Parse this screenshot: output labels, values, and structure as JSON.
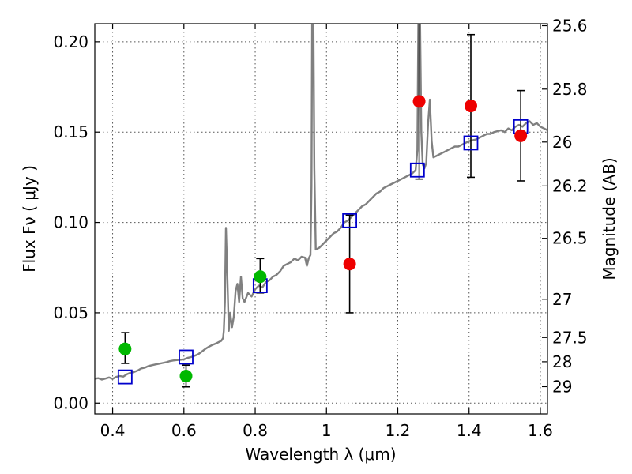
{
  "chart_data": {
    "type": "scatter",
    "xlabel": "Wavelength  λ (μm)",
    "ylabel": "Flux  Fν  ( μJy )",
    "y2label": "Magnitude (AB)",
    "xlim": [
      0.35,
      1.62
    ],
    "ylim": [
      -0.006,
      0.21
    ],
    "grid": true,
    "x_ticks": [
      {
        "value": 0.4,
        "label": "0.4"
      },
      {
        "value": 0.6,
        "label": "0.6"
      },
      {
        "value": 0.8,
        "label": "0.8"
      },
      {
        "value": 1.0,
        "label": "1"
      },
      {
        "value": 1.2,
        "label": "1.2"
      },
      {
        "value": 1.4,
        "label": "1.4"
      },
      {
        "value": 1.6,
        "label": "1.6"
      }
    ],
    "y_ticks": [
      {
        "value": 0.0,
        "label": "0.00"
      },
      {
        "value": 0.05,
        "label": "0.05"
      },
      {
        "value": 0.1,
        "label": "0.10"
      },
      {
        "value": 0.15,
        "label": "0.15"
      },
      {
        "value": 0.2,
        "label": "0.20"
      }
    ],
    "mag_ticks": [
      {
        "label": "25.6",
        "flux": 0.2089
      },
      {
        "label": "25.8",
        "flux": 0.1738
      },
      {
        "label": "26",
        "flux": 0.1445
      },
      {
        "label": "26.2",
        "flux": 0.1202
      },
      {
        "label": "26.5",
        "flux": 0.0912
      },
      {
        "label": "27",
        "flux": 0.0575
      },
      {
        "label": "27.5",
        "flux": 0.0363
      },
      {
        "label": "28",
        "flux": 0.0229
      },
      {
        "label": "29",
        "flux": 0.0091
      }
    ],
    "colors": {
      "template": "#808080",
      "model_photometry": "#0000cc",
      "green_points": "#00b800",
      "red_points": "#ee0000",
      "errorbar": "#000000"
    },
    "template_spectrum": [
      [
        0.35,
        0.0135
      ],
      [
        0.36,
        0.0138
      ],
      [
        0.37,
        0.013
      ],
      [
        0.38,
        0.0136
      ],
      [
        0.39,
        0.0142
      ],
      [
        0.4,
        0.0134
      ],
      [
        0.41,
        0.0145
      ],
      [
        0.42,
        0.015
      ],
      [
        0.43,
        0.0147
      ],
      [
        0.44,
        0.016
      ],
      [
        0.45,
        0.0168
      ],
      [
        0.46,
        0.0172
      ],
      [
        0.47,
        0.018
      ],
      [
        0.48,
        0.0192
      ],
      [
        0.49,
        0.0196
      ],
      [
        0.5,
        0.0205
      ],
      [
        0.51,
        0.021
      ],
      [
        0.52,
        0.0214
      ],
      [
        0.53,
        0.0218
      ],
      [
        0.54,
        0.0222
      ],
      [
        0.55,
        0.0226
      ],
      [
        0.56,
        0.0232
      ],
      [
        0.57,
        0.0236
      ],
      [
        0.58,
        0.0238
      ],
      [
        0.59,
        0.024
      ],
      [
        0.6,
        0.0242
      ],
      [
        0.61,
        0.025
      ],
      [
        0.62,
        0.0255
      ],
      [
        0.63,
        0.0262
      ],
      [
        0.64,
        0.027
      ],
      [
        0.65,
        0.0285
      ],
      [
        0.66,
        0.03
      ],
      [
        0.67,
        0.0312
      ],
      [
        0.68,
        0.0322
      ],
      [
        0.69,
        0.033
      ],
      [
        0.7,
        0.034
      ],
      [
        0.705,
        0.0345
      ],
      [
        0.71,
        0.036
      ],
      [
        0.712,
        0.04
      ],
      [
        0.715,
        0.056
      ],
      [
        0.718,
        0.097
      ],
      [
        0.722,
        0.07
      ],
      [
        0.726,
        0.04
      ],
      [
        0.73,
        0.05
      ],
      [
        0.735,
        0.042
      ],
      [
        0.74,
        0.048
      ],
      [
        0.745,
        0.062
      ],
      [
        0.75,
        0.066
      ],
      [
        0.755,
        0.056
      ],
      [
        0.76,
        0.07
      ],
      [
        0.765,
        0.058
      ],
      [
        0.77,
        0.056
      ],
      [
        0.78,
        0.061
      ],
      [
        0.79,
        0.059
      ],
      [
        0.8,
        0.063
      ],
      [
        0.81,
        0.065
      ],
      [
        0.82,
        0.064
      ],
      [
        0.83,
        0.067
      ],
      [
        0.84,
        0.068
      ],
      [
        0.85,
        0.07
      ],
      [
        0.86,
        0.071
      ],
      [
        0.87,
        0.073
      ],
      [
        0.88,
        0.076
      ],
      [
        0.89,
        0.077
      ],
      [
        0.9,
        0.078
      ],
      [
        0.91,
        0.08
      ],
      [
        0.92,
        0.079
      ],
      [
        0.93,
        0.081
      ],
      [
        0.94,
        0.0805
      ],
      [
        0.945,
        0.076
      ],
      [
        0.95,
        0.08
      ],
      [
        0.955,
        0.082
      ],
      [
        0.958,
        0.12
      ],
      [
        0.96,
        0.22
      ],
      [
        0.963,
        0.22
      ],
      [
        0.966,
        0.13
      ],
      [
        0.97,
        0.085
      ],
      [
        0.98,
        0.086
      ],
      [
        0.99,
        0.088
      ],
      [
        1.0,
        0.09
      ],
      [
        1.01,
        0.092
      ],
      [
        1.02,
        0.094
      ],
      [
        1.03,
        0.095
      ],
      [
        1.04,
        0.097
      ],
      [
        1.05,
        0.1
      ],
      [
        1.06,
        0.101
      ],
      [
        1.07,
        0.103
      ],
      [
        1.08,
        0.105
      ],
      [
        1.09,
        0.107
      ],
      [
        1.1,
        0.109
      ],
      [
        1.11,
        0.11
      ],
      [
        1.12,
        0.112
      ],
      [
        1.13,
        0.114
      ],
      [
        1.14,
        0.116
      ],
      [
        1.15,
        0.117
      ],
      [
        1.16,
        0.119
      ],
      [
        1.17,
        0.12
      ],
      [
        1.18,
        0.121
      ],
      [
        1.19,
        0.122
      ],
      [
        1.2,
        0.123
      ],
      [
        1.21,
        0.124
      ],
      [
        1.22,
        0.125
      ],
      [
        1.23,
        0.126
      ],
      [
        1.24,
        0.127
      ],
      [
        1.25,
        0.129
      ],
      [
        1.255,
        0.14
      ],
      [
        1.258,
        0.22
      ],
      [
        1.262,
        0.22
      ],
      [
        1.266,
        0.15
      ],
      [
        1.27,
        0.132
      ],
      [
        1.275,
        0.13
      ],
      [
        1.28,
        0.133
      ],
      [
        1.285,
        0.155
      ],
      [
        1.29,
        0.168
      ],
      [
        1.295,
        0.145
      ],
      [
        1.3,
        0.136
      ],
      [
        1.31,
        0.137
      ],
      [
        1.32,
        0.138
      ],
      [
        1.33,
        0.139
      ],
      [
        1.34,
        0.14
      ],
      [
        1.35,
        0.141
      ],
      [
        1.36,
        0.142
      ],
      [
        1.37,
        0.142
      ],
      [
        1.38,
        0.143
      ],
      [
        1.39,
        0.144
      ],
      [
        1.4,
        0.145
      ],
      [
        1.41,
        0.1455
      ],
      [
        1.42,
        0.146
      ],
      [
        1.43,
        0.147
      ],
      [
        1.44,
        0.148
      ],
      [
        1.45,
        0.149
      ],
      [
        1.46,
        0.149
      ],
      [
        1.47,
        0.15
      ],
      [
        1.48,
        0.1505
      ],
      [
        1.49,
        0.151
      ],
      [
        1.5,
        0.15
      ],
      [
        1.51,
        0.152
      ],
      [
        1.52,
        0.151
      ],
      [
        1.53,
        0.153
      ],
      [
        1.54,
        0.154
      ],
      [
        1.55,
        0.153
      ],
      [
        1.56,
        0.155
      ],
      [
        1.57,
        0.156
      ],
      [
        1.58,
        0.154
      ],
      [
        1.59,
        0.155
      ],
      [
        1.6,
        0.153
      ],
      [
        1.61,
        0.152
      ],
      [
        1.62,
        0.151
      ]
    ],
    "model_photometry": [
      {
        "x": 0.435,
        "y": 0.0145
      },
      {
        "x": 0.606,
        "y": 0.0255
      },
      {
        "x": 0.814,
        "y": 0.065
      },
      {
        "x": 1.065,
        "y": 0.101
      },
      {
        "x": 1.255,
        "y": 0.129
      },
      {
        "x": 1.405,
        "y": 0.144
      },
      {
        "x": 1.545,
        "y": 0.153
      }
    ],
    "observed_green": [
      {
        "x": 0.435,
        "y": 0.03,
        "yerr_low": 0.008,
        "yerr_high": 0.009
      },
      {
        "x": 0.606,
        "y": 0.015,
        "yerr_low": 0.006,
        "yerr_high": 0.006
      },
      {
        "x": 0.814,
        "y": 0.07,
        "yerr_low": 0.009,
        "yerr_high": 0.01
      }
    ],
    "observed_red": [
      {
        "x": 1.065,
        "y": 0.077,
        "yerr_low": 0.027,
        "yerr_high": 0.027
      },
      {
        "x": 1.26,
        "y": 0.167,
        "yerr_low": 0.043,
        "yerr_high": 0.06
      },
      {
        "x": 1.405,
        "y": 0.1645,
        "yerr_low": 0.0395,
        "yerr_high": 0.0395
      },
      {
        "x": 1.545,
        "y": 0.148,
        "yerr_low": 0.025,
        "yerr_high": 0.025
      }
    ]
  }
}
